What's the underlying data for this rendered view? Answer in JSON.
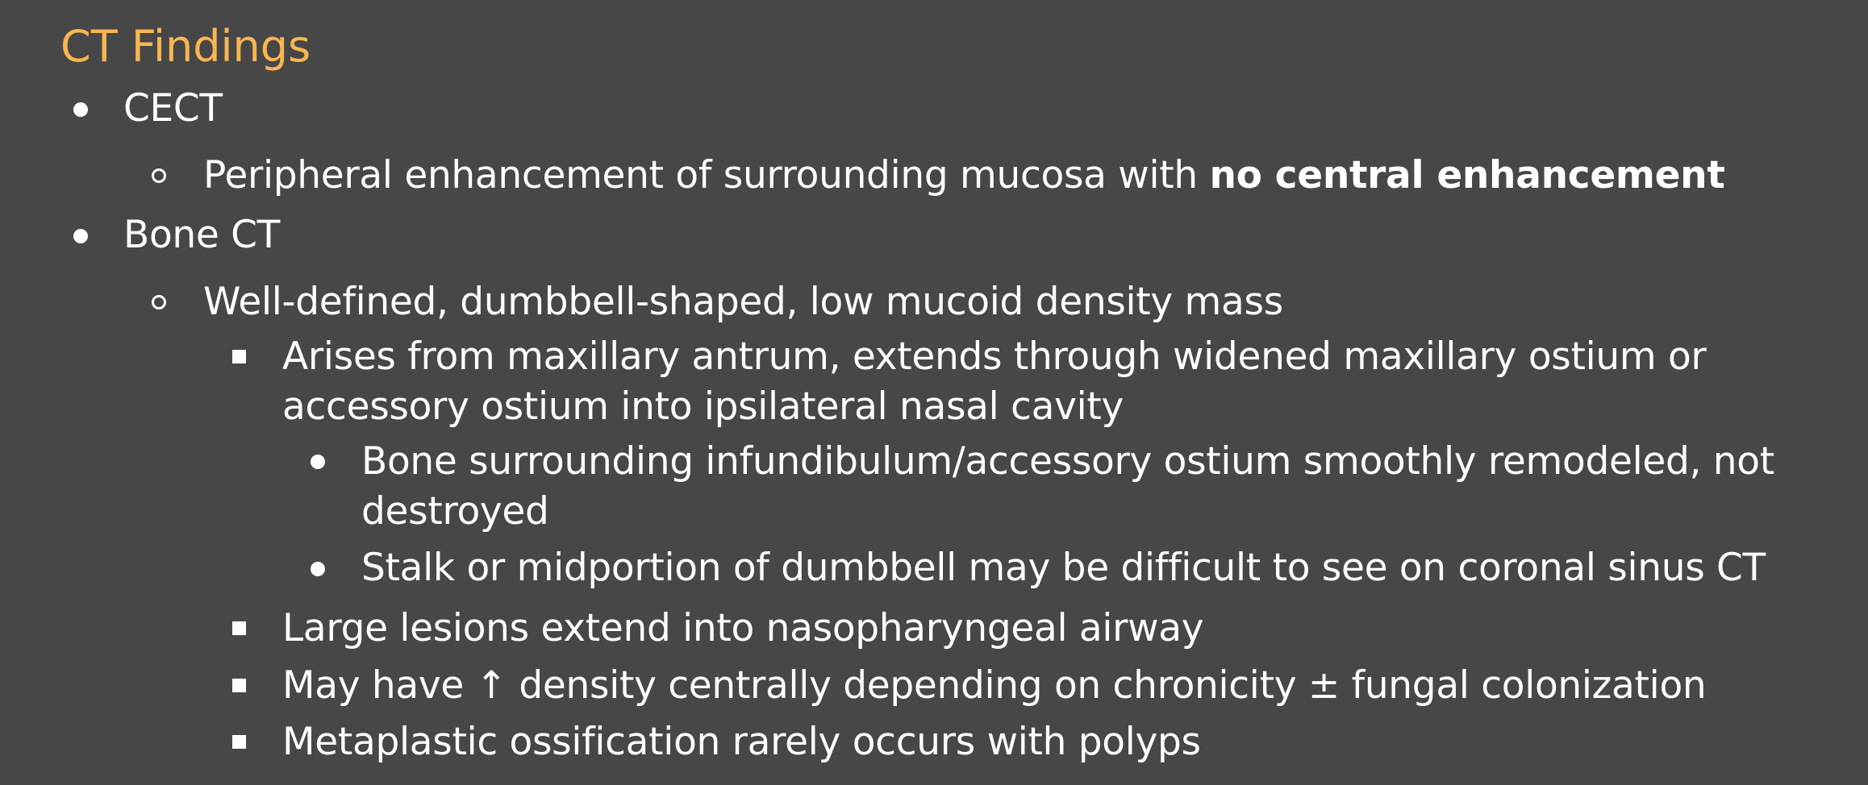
{
  "slide": {
    "title": "CT Findings",
    "title_color": "#f8b651",
    "background_color": "#474747",
    "items": [
      {
        "level": 1,
        "text": "CECT"
      },
      {
        "level": 2,
        "text_plain": "Peripheral enhancement of surrounding mucosa with ",
        "text_bold": "no central enhancement"
      },
      {
        "level": 1,
        "text": "Bone CT"
      },
      {
        "level": 2,
        "text": "Well-defined, dumbbell-shaped, low mucoid density mass"
      },
      {
        "level": 3,
        "line1": "Arises from maxillary antrum, extends through widened maxillary ostium or",
        "line2": "accessory ostium into ipsilateral nasal cavity"
      },
      {
        "level": 4,
        "line1": "Bone surrounding infundibulum/accessory ostium smoothly remodeled, not",
        "line2": "destroyed"
      },
      {
        "level": 4,
        "text": "Stalk or midportion of dumbbell may be difficult to see on coronal sinus CT"
      },
      {
        "level": 3,
        "text": "Large lesions extend into nasopharyngeal airway"
      },
      {
        "level": 3,
        "text": "May have ↑ density centrally depending on chronicity ± fungal colonization"
      },
      {
        "level": 3,
        "text": "Metaplastic ossification rarely occurs with polyps"
      }
    ]
  }
}
